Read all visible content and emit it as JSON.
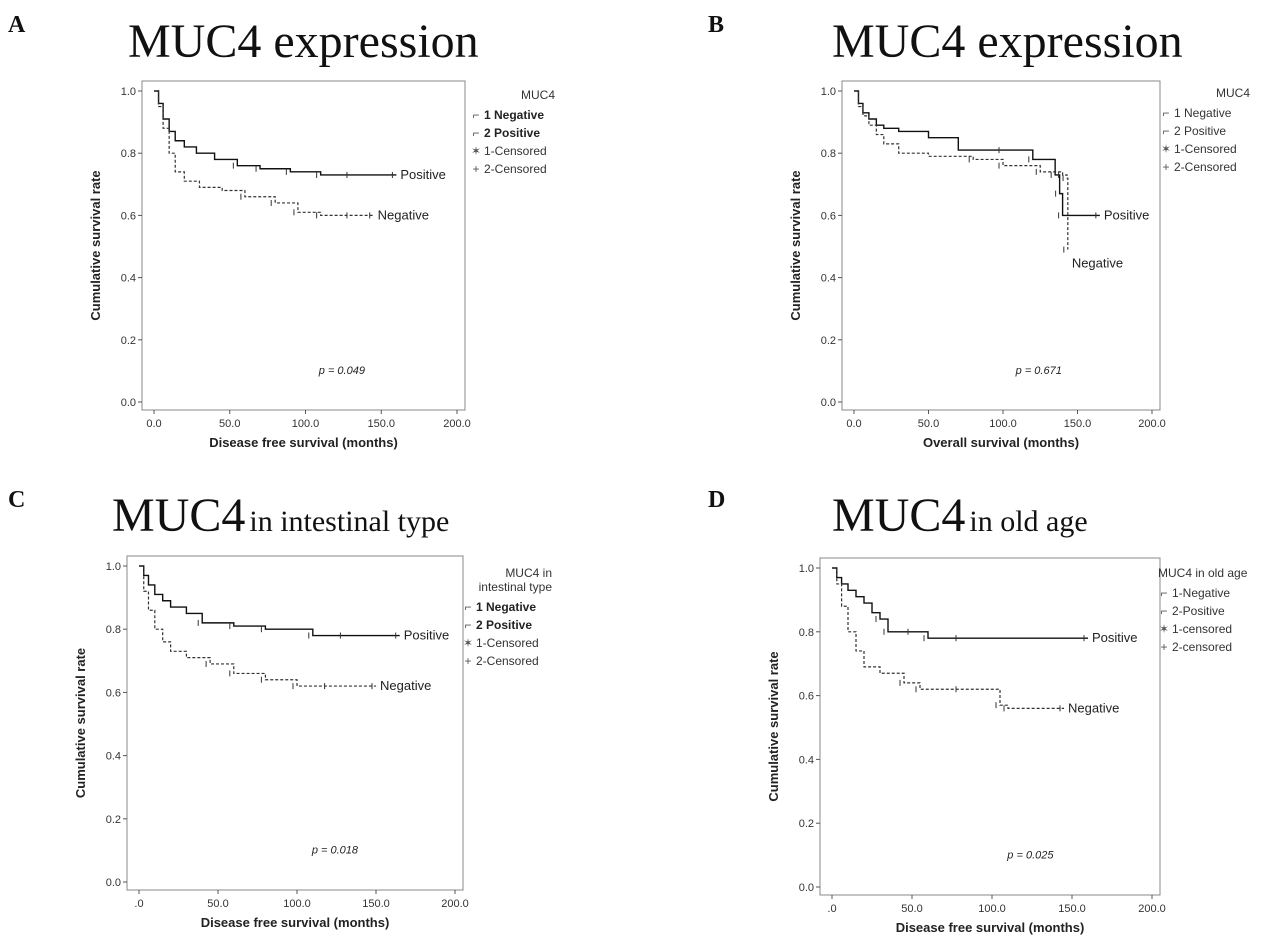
{
  "chart_data": [
    {
      "panel": "A",
      "type": "line",
      "title": "MUC4 expression",
      "title_small": "",
      "xlabel": "Disease free survival (months)",
      "ylabel": "Cumulative survival rate",
      "xlim": [
        0,
        200
      ],
      "ylim": [
        0,
        1
      ],
      "xticks": [
        "0.0",
        "50.0",
        "100.0",
        "150.0",
        "200.0"
      ],
      "yticks": [
        "0.0",
        "0.2",
        "0.4",
        "0.6",
        "0.8",
        "1.0"
      ],
      "legend_title": "MUC4",
      "legend_entries": [
        "1 Negative",
        "2 Positive",
        "1-Censored",
        "2-Censored"
      ],
      "p_value": "p = 0.049",
      "grid": false,
      "series": [
        {
          "name": "Positive",
          "style": "solid",
          "x": [
            0,
            3,
            6,
            10,
            14,
            20,
            28,
            40,
            55,
            70,
            90,
            110,
            130,
            160
          ],
          "y": [
            1.0,
            0.96,
            0.91,
            0.87,
            0.84,
            0.82,
            0.8,
            0.78,
            0.76,
            0.75,
            0.74,
            0.73,
            0.73,
            0.73
          ]
        },
        {
          "name": "Negative",
          "style": "dashed",
          "x": [
            0,
            3,
            6,
            10,
            14,
            20,
            30,
            45,
            60,
            80,
            95,
            110,
            130,
            145
          ],
          "y": [
            1.0,
            0.95,
            0.88,
            0.8,
            0.74,
            0.71,
            0.69,
            0.68,
            0.66,
            0.64,
            0.61,
            0.6,
            0.6,
            0.6
          ]
        }
      ],
      "annotations": [
        "Positive",
        "Negative"
      ]
    },
    {
      "panel": "B",
      "type": "line",
      "title": "MUC4 expression",
      "title_small": "",
      "xlabel": "Overall survival (months)",
      "ylabel": "Cumulative survival rate",
      "xlim": [
        0,
        200
      ],
      "ylim": [
        0,
        1
      ],
      "xticks": [
        "0.0",
        "50.0",
        "100.0",
        "150.0",
        "200.0"
      ],
      "yticks": [
        "0.0",
        "0.2",
        "0.4",
        "0.6",
        "0.8",
        "1.0"
      ],
      "legend_title": "MUC4",
      "legend_entries": [
        "1 Negative",
        "2 Positive",
        "1-Censored",
        "2-Censored"
      ],
      "p_value": "p = 0.671",
      "grid": false,
      "series": [
        {
          "name": "Positive",
          "style": "solid",
          "x": [
            0,
            3,
            6,
            10,
            15,
            20,
            30,
            50,
            70,
            100,
            120,
            135,
            138,
            140,
            165
          ],
          "y": [
            1.0,
            0.96,
            0.93,
            0.91,
            0.89,
            0.88,
            0.87,
            0.85,
            0.81,
            0.81,
            0.78,
            0.73,
            0.67,
            0.6,
            0.6
          ]
        },
        {
          "name": "Negative",
          "style": "dashed",
          "x": [
            0,
            3,
            6,
            10,
            15,
            20,
            30,
            50,
            80,
            100,
            125,
            140,
            143,
            143.5
          ],
          "y": [
            1.0,
            0.95,
            0.92,
            0.89,
            0.86,
            0.83,
            0.8,
            0.79,
            0.78,
            0.76,
            0.74,
            0.73,
            0.72,
            0.49
          ]
        }
      ],
      "annotations": [
        "Positive",
        "Negative"
      ]
    },
    {
      "panel": "C",
      "type": "line",
      "title": "MUC4",
      "title_small": "in intestinal type",
      "xlabel": "Disease free survival (months)",
      "ylabel": "Cumulative survival rate",
      "xlim": [
        0,
        200
      ],
      "ylim": [
        0,
        1
      ],
      "xticks": [
        ".0",
        "50.0",
        "100.0",
        "150.0",
        "200.0"
      ],
      "yticks": [
        "0.0",
        "0.2",
        "0.4",
        "0.6",
        "0.8",
        "1.0"
      ],
      "legend_title": "MUC4 in intestinal type",
      "legend_entries": [
        "1 Negative",
        "2 Positive",
        "1-Censored",
        "2-Censored"
      ],
      "p_value": "p = 0.018",
      "grid": false,
      "series": [
        {
          "name": "Positive",
          "style": "solid",
          "x": [
            0,
            3,
            6,
            10,
            15,
            20,
            30,
            40,
            60,
            80,
            110,
            130,
            165
          ],
          "y": [
            1.0,
            0.97,
            0.94,
            0.91,
            0.89,
            0.87,
            0.85,
            0.82,
            0.81,
            0.8,
            0.78,
            0.78,
            0.78
          ]
        },
        {
          "name": "Negative",
          "style": "dashed",
          "x": [
            0,
            3,
            6,
            10,
            15,
            20,
            30,
            45,
            60,
            80,
            100,
            120,
            150
          ],
          "y": [
            1.0,
            0.92,
            0.86,
            0.8,
            0.76,
            0.73,
            0.71,
            0.69,
            0.66,
            0.64,
            0.62,
            0.62,
            0.62
          ]
        }
      ],
      "annotations": [
        "Positive",
        "Negative"
      ]
    },
    {
      "panel": "D",
      "type": "line",
      "title": "MUC4",
      "title_small": "in old age",
      "xlabel": "Disease free survival (months)",
      "ylabel": "Cumulative survival rate",
      "xlim": [
        0,
        200
      ],
      "ylim": [
        0,
        1
      ],
      "xticks": [
        ".0",
        "50.0",
        "100.0",
        "150.0",
        "200.0"
      ],
      "yticks": [
        "0.0",
        "0.2",
        "0.4",
        "0.6",
        "0.8",
        "1.0"
      ],
      "legend_title": "MUC4 in old age",
      "legend_entries": [
        "1-Negative",
        "2-Positive",
        "1-censored",
        "2-censored"
      ],
      "p_value": "p = 0.025",
      "grid": false,
      "series": [
        {
          "name": "Positive",
          "style": "solid",
          "x": [
            0,
            3,
            6,
            10,
            15,
            20,
            25,
            30,
            35,
            50,
            60,
            80,
            160
          ],
          "y": [
            1.0,
            0.97,
            0.95,
            0.93,
            0.91,
            0.89,
            0.86,
            0.84,
            0.8,
            0.8,
            0.78,
            0.78,
            0.78
          ]
        },
        {
          "name": "Negative",
          "style": "dashed",
          "x": [
            0,
            3,
            6,
            10,
            15,
            20,
            30,
            45,
            55,
            80,
            105,
            110,
            145
          ],
          "y": [
            1.0,
            0.95,
            0.88,
            0.8,
            0.74,
            0.69,
            0.67,
            0.64,
            0.62,
            0.62,
            0.57,
            0.56,
            0.56
          ]
        }
      ],
      "annotations": [
        "Positive",
        "Negative"
      ]
    }
  ]
}
